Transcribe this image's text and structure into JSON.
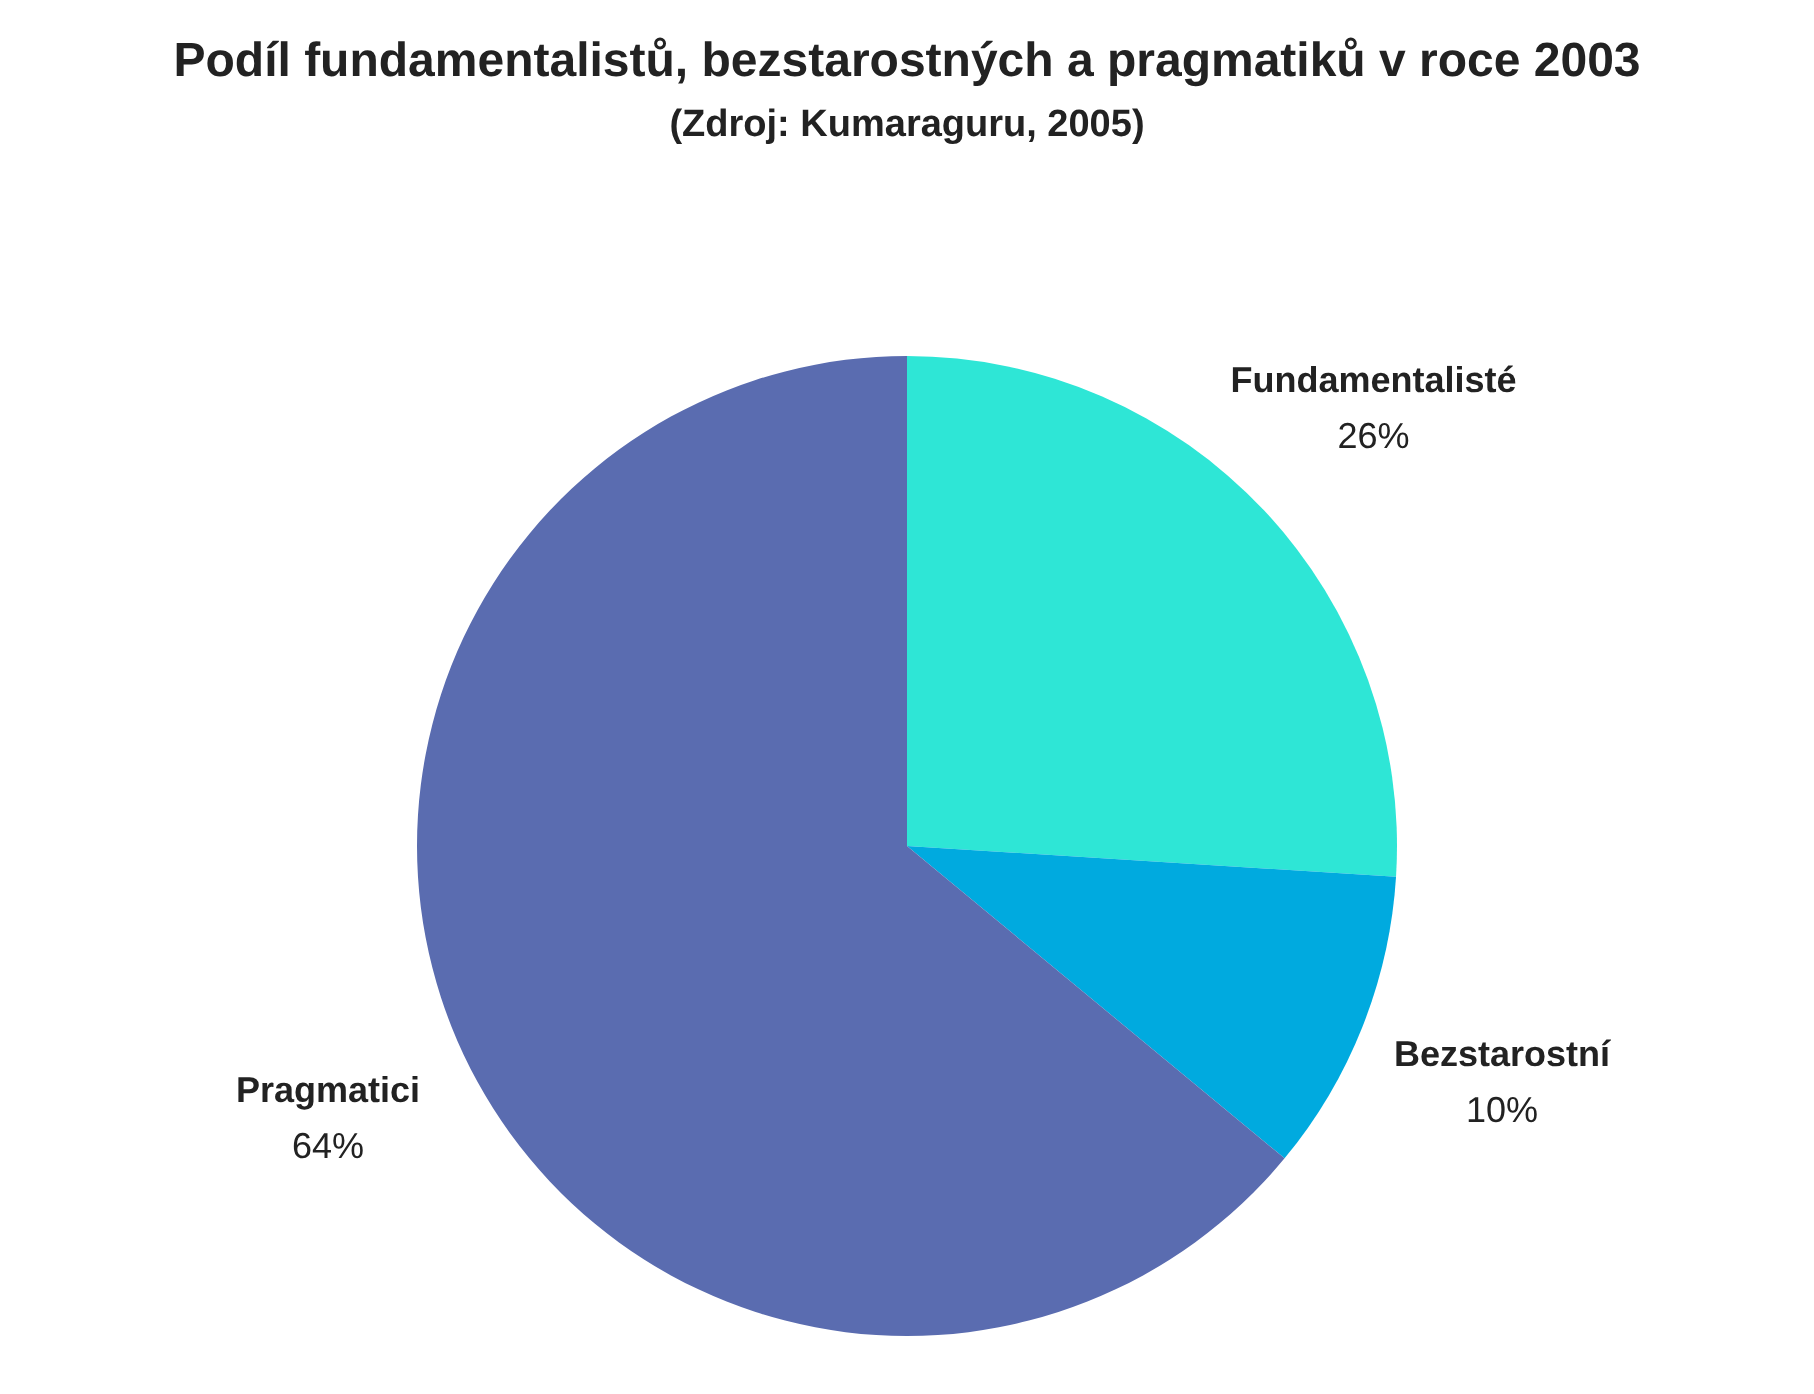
{
  "chart_data": {
    "type": "pie",
    "title": "Podíl fundamentalistů, bezstarostných a pragmatiků  v roce 2003",
    "subtitle": "(Zdroj: Kumaraguru, 2005)",
    "categories": [
      "Fundamentalisté",
      "Bezstarostní",
      "Pragmatici"
    ],
    "values": [
      26,
      10,
      64
    ],
    "value_labels": [
      "26%",
      "10%",
      "64%"
    ],
    "colors": [
      "#2ee6d6",
      "#00aadf",
      "#5a6cb0"
    ],
    "legend": false
  }
}
